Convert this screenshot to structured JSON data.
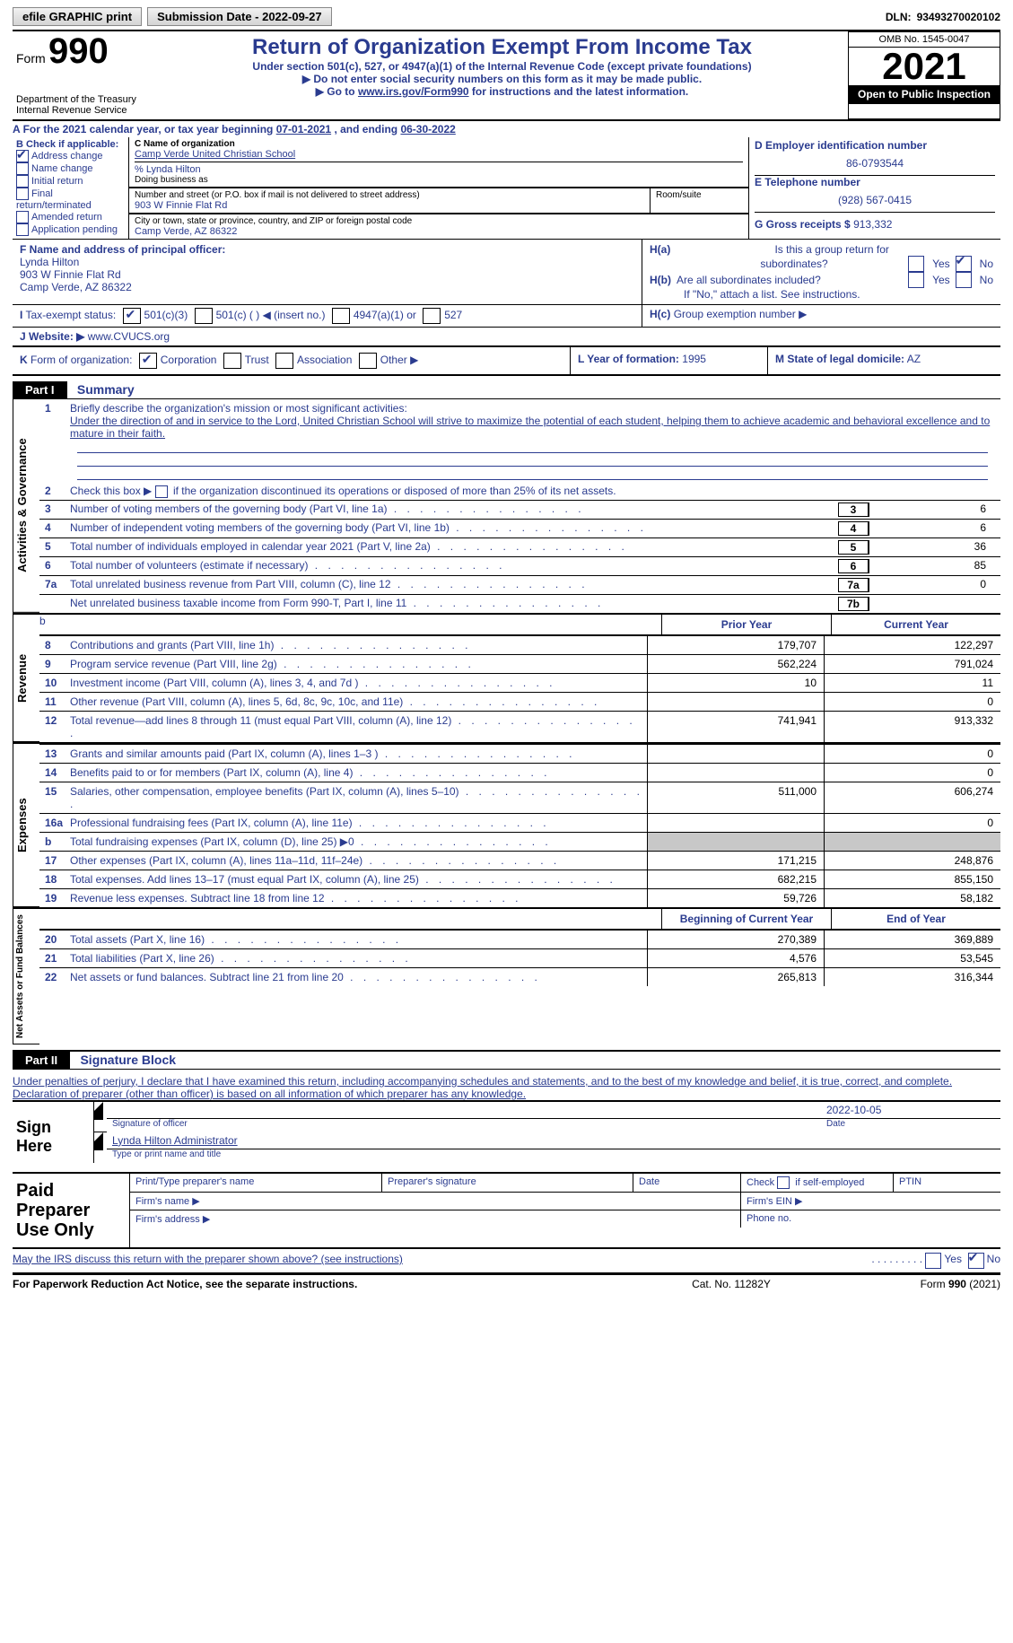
{
  "topbar": {
    "btn1": "efile GRAPHIC print",
    "btn2": "Submission Date - 2022-09-27",
    "dln_label": "DLN:",
    "dln": "93493270020102"
  },
  "header": {
    "form_label_small": "Form",
    "form_num": "990",
    "title": "Return of Organization Exempt From Income Tax",
    "sub1": "Under section 501(c), 527, or 4947(a)(1) of the Internal Revenue Code (except private foundations)",
    "sub2": "Do not enter social security numbers on this form as it may be made public.",
    "sub3_pre": "Go to ",
    "sub3_link": "www.irs.gov/Form990",
    "sub3_post": " for instructions and the latest information.",
    "dept": "Department of the Treasury",
    "irs": "Internal Revenue Service",
    "omb": "OMB No. 1545-0047",
    "year": "2021",
    "open": "Open to Public Inspection"
  },
  "rowA": {
    "text_pre": "For the 2021 calendar year, or tax year beginning ",
    "begin": "07-01-2021",
    "mid": " , and ending ",
    "end": "06-30-2022",
    "label": "A"
  },
  "B": {
    "label": "B Check if applicable:",
    "opts": [
      {
        "t": "Address change",
        "c": true
      },
      {
        "t": "Name change",
        "c": false
      },
      {
        "t": "Initial return",
        "c": false
      },
      {
        "t": "Final return/terminated",
        "c": false
      },
      {
        "t": "Amended return",
        "c": false
      },
      {
        "t": "Application pending",
        "c": false
      }
    ]
  },
  "C": {
    "name_label": "C Name of organization",
    "name": "Camp Verde United Christian School",
    "care_of": "% Lynda Hilton",
    "dba_label": "Doing business as",
    "addr_label": "Number and street (or P.O. box if mail is not delivered to street address)",
    "room_label": "Room/suite",
    "addr": "903 W Finnie Flat Rd",
    "city_label": "City or town, state or province, country, and ZIP or foreign postal code",
    "city": "Camp Verde, AZ  86322"
  },
  "D": {
    "ein_label": "D Employer identification number",
    "ein": "86-0793544",
    "tel_label": "E Telephone number",
    "tel": "(928) 567-0415",
    "gross_label": "G Gross receipts $",
    "gross": "913,332"
  },
  "F": {
    "label": "F Name and address of principal officer:",
    "name": "Lynda Hilton",
    "addr1": "903 W Finnie Flat Rd",
    "addr2": "Camp Verde, AZ  86322"
  },
  "H": {
    "a_label": "Is this a group return for",
    "a_label2": "subordinates?",
    "a_pre": "H(a)",
    "b_pre": "H(b)",
    "b_label": "Are all subordinates included?",
    "note": "If \"No,\" attach a list. See instructions.",
    "c_pre": "H(c)",
    "c_label": "Group exemption number ▶",
    "yes": "Yes",
    "no": "No"
  },
  "I": {
    "label": "Tax-exempt status:",
    "opt1": "501(c)(3)",
    "opt2": "501(c) (  ) ◀ (insert no.)",
    "opt3": "4947(a)(1) or",
    "opt4": "527",
    "pre": "I"
  },
  "J": {
    "pre": "J",
    "label": "Website: ▶",
    "val": "www.CVUCS.org"
  },
  "K": {
    "pre": "K",
    "label": "Form of organization:",
    "o1": "Corporation",
    "o2": "Trust",
    "o3": "Association",
    "o4": "Other ▶",
    "L_label": "L Year of formation:",
    "L_val": "1995",
    "M_label": "M State of legal domicile:",
    "M_val": "AZ"
  },
  "part1": {
    "hdr": "Part I",
    "title": "Summary",
    "side1": "Activities & Governance",
    "side2": "Revenue",
    "side3": "Expenses",
    "side4": "Net Assets or Fund Balances",
    "line1a": "Briefly describe the organization's mission or most significant activities:",
    "line1b": "Under the direction of and in service to the Lord, United Christian School will strive to maximize the potential of each student, helping them to achieve academic and behavioral excellence and to mature in their faith.",
    "line2": "Check this box ▶       if the organization discontinued its operations or disposed of more than 25% of its net assets.",
    "lines_gov": [
      {
        "n": "3",
        "t": "Number of voting members of the governing body (Part VI, line 1a)",
        "box": "3",
        "v": "6"
      },
      {
        "n": "4",
        "t": "Number of independent voting members of the governing body (Part VI, line 1b)",
        "box": "4",
        "v": "6"
      },
      {
        "n": "5",
        "t": "Total number of individuals employed in calendar year 2021 (Part V, line 2a)",
        "box": "5",
        "v": "36"
      },
      {
        "n": "6",
        "t": "Total number of volunteers (estimate if necessary)",
        "box": "6",
        "v": "85"
      },
      {
        "n": "7a",
        "t": "Total unrelated business revenue from Part VIII, column (C), line 12",
        "box": "7a",
        "v": "0"
      },
      {
        "n": "",
        "t": "Net unrelated business taxable income from Form 990-T, Part I, line 11",
        "box": "7b",
        "v": ""
      }
    ],
    "col_prior": "Prior Year",
    "col_curr": "Current Year",
    "col_begin": "Beginning of Current Year",
    "col_end": "End of Year",
    "rev": [
      {
        "n": "8",
        "t": "Contributions and grants (Part VIII, line 1h)",
        "p": "179,707",
        "c": "122,297"
      },
      {
        "n": "9",
        "t": "Program service revenue (Part VIII, line 2g)",
        "p": "562,224",
        "c": "791,024"
      },
      {
        "n": "10",
        "t": "Investment income (Part VIII, column (A), lines 3, 4, and 7d )",
        "p": "10",
        "c": "11"
      },
      {
        "n": "11",
        "t": "Other revenue (Part VIII, column (A), lines 5, 6d, 8c, 9c, 10c, and 11e)",
        "p": "",
        "c": "0"
      },
      {
        "n": "12",
        "t": "Total revenue—add lines 8 through 11 (must equal Part VIII, column (A), line 12)",
        "p": "741,941",
        "c": "913,332"
      }
    ],
    "exp": [
      {
        "n": "13",
        "t": "Grants and similar amounts paid (Part IX, column (A), lines 1–3 )",
        "p": "",
        "c": "0"
      },
      {
        "n": "14",
        "t": "Benefits paid to or for members (Part IX, column (A), line 4)",
        "p": "",
        "c": "0"
      },
      {
        "n": "15",
        "t": "Salaries, other compensation, employee benefits (Part IX, column (A), lines 5–10)",
        "p": "511,000",
        "c": "606,274"
      },
      {
        "n": "16a",
        "t": "Professional fundraising fees (Part IX, column (A), line 11e)",
        "p": "",
        "c": "0"
      },
      {
        "n": "b",
        "t": "Total fundraising expenses (Part IX, column (D), line 25) ▶0",
        "p": "SHADE",
        "c": "SHADE"
      },
      {
        "n": "17",
        "t": "Other expenses (Part IX, column (A), lines 11a–11d, 11f–24e)",
        "p": "171,215",
        "c": "248,876"
      },
      {
        "n": "18",
        "t": "Total expenses. Add lines 13–17 (must equal Part IX, column (A), line 25)",
        "p": "682,215",
        "c": "855,150"
      },
      {
        "n": "19",
        "t": "Revenue less expenses. Subtract line 18 from line 12",
        "p": "59,726",
        "c": "58,182"
      }
    ],
    "net": [
      {
        "n": "20",
        "t": "Total assets (Part X, line 16)",
        "p": "270,389",
        "c": "369,889"
      },
      {
        "n": "21",
        "t": "Total liabilities (Part X, line 26)",
        "p": "4,576",
        "c": "53,545"
      },
      {
        "n": "22",
        "t": "Net assets or fund balances. Subtract line 21 from line 20",
        "p": "265,813",
        "c": "316,344"
      }
    ]
  },
  "part2": {
    "hdr": "Part II",
    "title": "Signature Block",
    "decl": "Under penalties of perjury, I declare that I have examined this return, including accompanying schedules and statements, and to the best of my knowledge and belief, it is true, correct, and complete. Declaration of preparer (other than officer) is based on all information of which preparer has any knowledge.",
    "sign_here": "Sign Here",
    "sig_officer": "Signature of officer",
    "date_lbl": "Date",
    "date": "2022-10-05",
    "name_title": "Lynda Hilton  Administrator",
    "type_name": "Type or print name and title",
    "paid": "Paid Preparer Use Only",
    "prep_name": "Print/Type preparer's name",
    "prep_sig": "Preparer's signature",
    "prep_date": "Date",
    "prep_check": "Check         if self-employed",
    "ptin": "PTIN",
    "firm_name": "Firm's name  ▶",
    "firm_ein": "Firm's EIN ▶",
    "firm_addr": "Firm's address ▶",
    "phone": "Phone no.",
    "may_irs": "May the IRS discuss this return with the preparer shown above? (see instructions)",
    "yes": "Yes",
    "no": "No"
  },
  "footer": {
    "left": "For Paperwork Reduction Act Notice, see the separate instructions.",
    "center": "Cat. No. 11282Y",
    "right": "Form 990 (2021)"
  },
  "colors": {
    "text_blue": "#2a3b8f",
    "black": "#000000",
    "shade": "#c8c8c8"
  }
}
